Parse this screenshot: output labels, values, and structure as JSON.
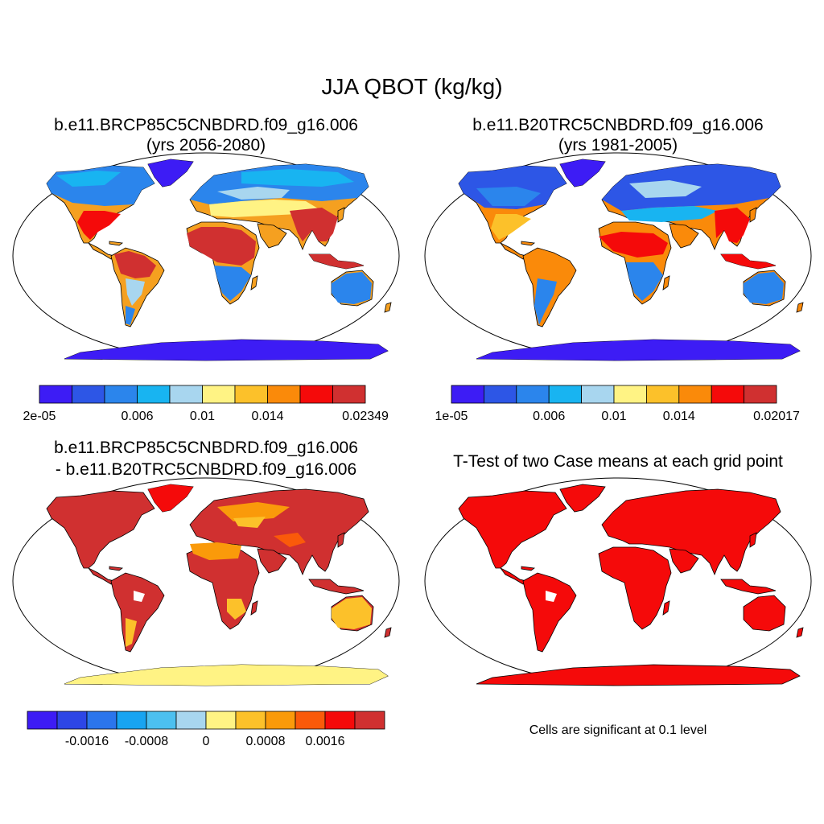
{
  "figure": {
    "title": "JJA QBOT (kg/kg)",
    "panels": [
      {
        "title_line1": "b.e11.BRCP85C5CNBDRD.f09_g16.006",
        "title_line2": "(yrs 2056-2080)",
        "colorbar": {
          "colors": [
            "#3d1cf5",
            "#2d56e6",
            "#2b85ec",
            "#18b4f1",
            "#a8d6ef",
            "#fff384",
            "#fcc12a",
            "#fa8a0a",
            "#f50a0a",
            "#d03030"
          ],
          "labels": [
            "2e-05",
            "0.006",
            "0.01",
            "0.014",
            "0.02349"
          ]
        }
      },
      {
        "title_line1": "b.e11.B20TRC5CNBDRD.f09_g16.006",
        "title_line2": "(yrs 1981-2005)",
        "colorbar": {
          "colors": [
            "#3d1cf5",
            "#2d56e6",
            "#2b85ec",
            "#18b4f1",
            "#a8d6ef",
            "#fff384",
            "#fcc12a",
            "#fa8a0a",
            "#f50a0a",
            "#d03030"
          ],
          "labels": [
            "1e-05",
            "0.006",
            "0.01",
            "0.014",
            "0.02017"
          ]
        }
      },
      {
        "title_line1": "b.e11.BRCP85C5CNBDRD.f09_g16.006",
        "title_line2": "- b.e11.B20TRC5CNBDRD.f09_g16.006",
        "colorbar": {
          "colors": [
            "#3d1cf5",
            "#2d46e6",
            "#2b75ec",
            "#18a4f1",
            "#4cc0f0",
            "#a8d6ef",
            "#fff384",
            "#fcc12a",
            "#fa9a0a",
            "#fa5a0a",
            "#f50a0a",
            "#d03030"
          ],
          "labels": [
            "-0.0016",
            "-0.0008",
            "0",
            "0.0008",
            "0.0016"
          ]
        }
      },
      {
        "title_line1": "T-Test of two Case means at each grid point",
        "note": "Cells are significant at 0.1 level"
      }
    ]
  }
}
